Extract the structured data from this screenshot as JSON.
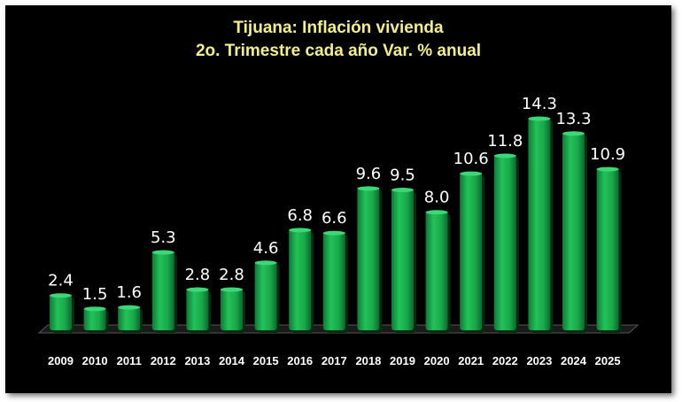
{
  "chart_data": {
    "type": "bar",
    "title": "Tijuana: Inflación vivienda",
    "subtitle": "2o. Trimestre cada año Var. % anual",
    "categories": [
      "2009",
      "2010",
      "2011",
      "2012",
      "2013",
      "2014",
      "2015",
      "2016",
      "2017",
      "2018",
      "2019",
      "2020",
      "2021",
      "2022",
      "2023",
      "2024",
      "2025"
    ],
    "values": [
      2.4,
      1.5,
      1.6,
      5.3,
      2.8,
      2.8,
      4.6,
      6.8,
      6.6,
      9.6,
      9.5,
      8.0,
      10.6,
      11.8,
      14.3,
      13.3,
      10.9
    ],
    "data_labels": [
      "2.4",
      "1.5",
      "1.6",
      "5.3",
      "2.8",
      "2.8",
      "4.6",
      "6.8",
      "6.6",
      "9.6",
      "9.5",
      "8.0",
      "10.6",
      "11.8",
      "14.3",
      "13.3",
      "10.9"
    ],
    "ylim": [
      0,
      14.3
    ],
    "grid": false,
    "legend": "none",
    "colors": {
      "background": "#000000",
      "bar": "#1fb24f",
      "title": "#f2ef8c",
      "text": "#ffffff"
    }
  }
}
